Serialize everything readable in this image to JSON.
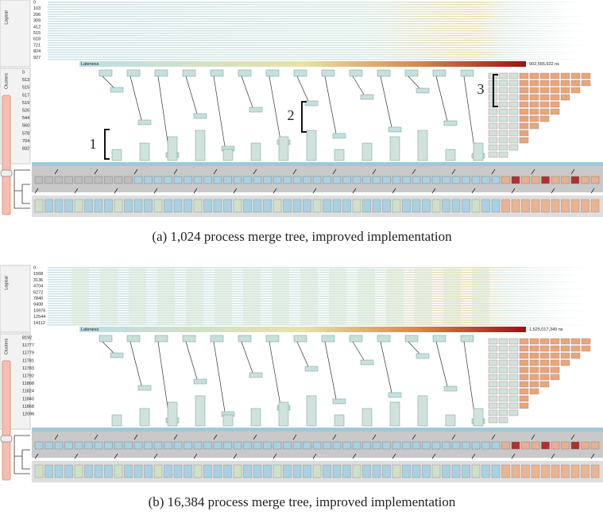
{
  "panels": [
    {
      "logical_label": "Logical",
      "logical_rows": [
        "0",
        "103",
        "206",
        "309",
        "412",
        "515",
        "618",
        "721",
        "824",
        "927"
      ],
      "lateness_label": "Lateness",
      "lateness_max": "902,555,922 ns",
      "clusters_label": "Clusters",
      "cluster_rows": [
        "0",
        "513",
        "515",
        "517",
        "519",
        "526",
        "544",
        "560",
        "578",
        "704",
        "832"
      ],
      "annotations": [
        "1",
        "2",
        "3"
      ],
      "caption": "(a) 1,024 process merge tree, improved implementation"
    },
    {
      "logical_label": "Logical",
      "logical_rows": [
        "0",
        "1568",
        "3136",
        "4704",
        "6272",
        "7840",
        "9408",
        "10976",
        "12544",
        "14112"
      ],
      "lateness_label": "Lateness",
      "lateness_max": "1,525,017,349 ns",
      "clusters_label": "Clusters",
      "cluster_rows": [
        "8192",
        "11777",
        "11779",
        "11781",
        "11783",
        "11792",
        "11808",
        "11824",
        "11840",
        "11868",
        "12096"
      ],
      "caption": "(b) 16,384 process merge tree, improved implementation"
    }
  ]
}
